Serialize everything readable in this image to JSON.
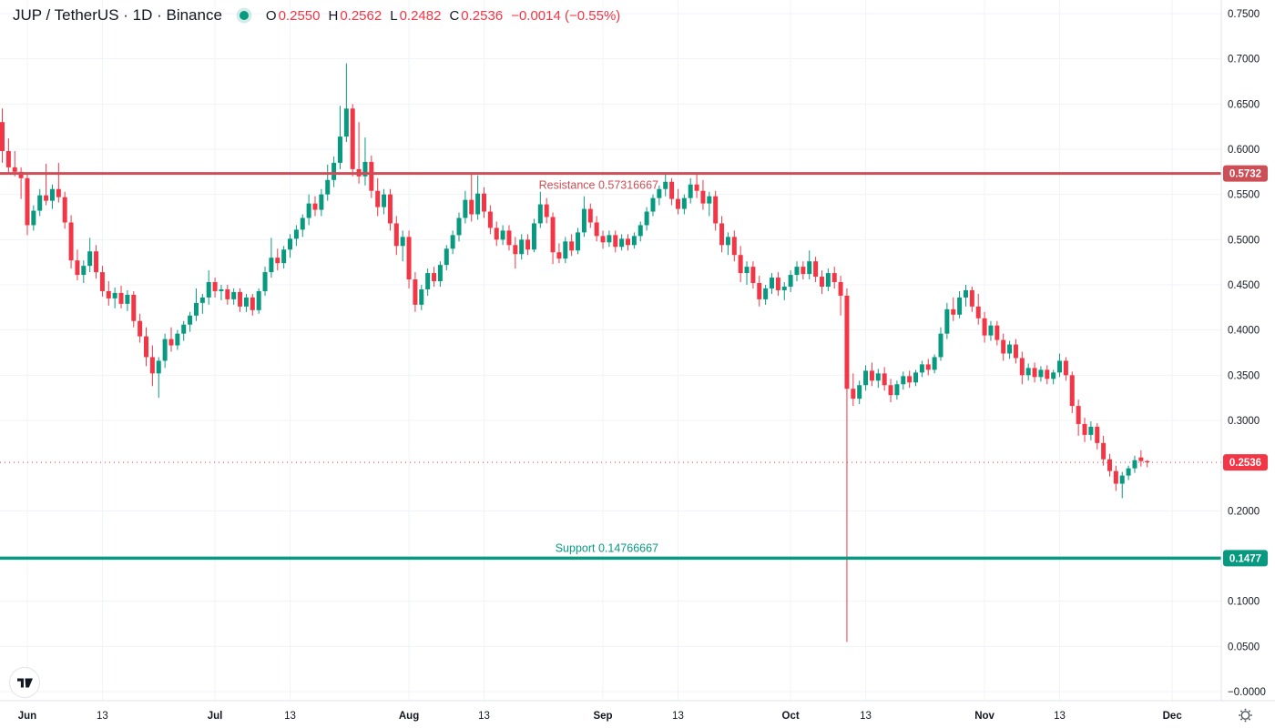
{
  "header": {
    "symbol": "JUP / TetherUS · 1D · Binance",
    "ohlc": {
      "o_label": "O",
      "o": "0.2550",
      "h_label": "H",
      "h": "0.2562",
      "l_label": "L",
      "l": "0.2482",
      "c_label": "C",
      "c": "0.2536",
      "change": "−0.0014 (−0.55%)"
    }
  },
  "icons": {
    "market_status": "market-status-dot",
    "settings": "settings-gear-icon",
    "logo": "tradingview-logo"
  },
  "colors": {
    "up": "#089981",
    "down": "#f23645",
    "resistance": "#cc4e56",
    "support": "#089981",
    "last_price": "#f23645",
    "grid": "#f0f3fa",
    "separator": "#e0e3eb",
    "text": "#131722"
  },
  "chart_data": {
    "type": "candlestick",
    "title": "JUP / TetherUS · 1D · Binance",
    "ylim": [
      0.0,
      0.75
    ],
    "grid": true,
    "price_ticks": {
      "values": [
        0.75,
        0.7,
        0.65,
        0.6,
        0.55,
        0.5,
        0.45,
        0.4,
        0.35,
        0.3,
        0.2,
        0.1,
        0.05,
        0.0
      ],
      "labels": [
        "0.7500",
        "0.7000",
        "0.6500",
        "0.6000",
        "0.5500",
        "0.5000",
        "0.4500",
        "0.4000",
        "0.3500",
        "0.3000",
        "0.2000",
        "0.1000",
        "0.0500",
        "−0.0000"
      ]
    },
    "time_ticks": [
      {
        "label": "Jun",
        "index": 4,
        "major": true
      },
      {
        "label": "13",
        "index": 16,
        "major": false
      },
      {
        "label": "Jul",
        "index": 34,
        "major": true
      },
      {
        "label": "13",
        "index": 46,
        "major": false
      },
      {
        "label": "Aug",
        "index": 65,
        "major": true
      },
      {
        "label": "13",
        "index": 77,
        "major": false
      },
      {
        "label": "Sep",
        "index": 96,
        "major": true
      },
      {
        "label": "13",
        "index": 108,
        "major": false
      },
      {
        "label": "Oct",
        "index": 126,
        "major": true
      },
      {
        "label": "13",
        "index": 138,
        "major": false
      },
      {
        "label": "Nov",
        "index": 157,
        "major": true
      },
      {
        "label": "13",
        "index": 169,
        "major": false
      },
      {
        "label": "Dec",
        "index": 187,
        "major": true
      }
    ],
    "levels": {
      "resistance": {
        "label": "Resistance 0.57316667",
        "value": 0.57316667,
        "badge": "0.5732"
      },
      "support": {
        "label": "Support 0.14766667",
        "value": 0.14766667,
        "badge": "0.1477"
      },
      "last": {
        "value": 0.2536,
        "badge": "0.2536"
      }
    },
    "candles": [
      [
        0.63,
        0.645,
        0.585,
        0.598
      ],
      [
        0.598,
        0.612,
        0.572,
        0.58
      ],
      [
        0.58,
        0.598,
        0.57,
        0.575
      ],
      [
        0.575,
        0.58,
        0.545,
        0.568
      ],
      [
        0.568,
        0.572,
        0.505,
        0.516
      ],
      [
        0.516,
        0.538,
        0.51,
        0.532
      ],
      [
        0.532,
        0.556,
        0.526,
        0.549
      ],
      [
        0.549,
        0.584,
        0.538,
        0.543
      ],
      [
        0.543,
        0.561,
        0.534,
        0.556
      ],
      [
        0.556,
        0.585,
        0.541,
        0.547
      ],
      [
        0.547,
        0.553,
        0.512,
        0.519
      ],
      [
        0.519,
        0.527,
        0.468,
        0.477
      ],
      [
        0.477,
        0.489,
        0.455,
        0.461
      ],
      [
        0.461,
        0.477,
        0.452,
        0.471
      ],
      [
        0.471,
        0.502,
        0.464,
        0.487
      ],
      [
        0.487,
        0.494,
        0.457,
        0.464
      ],
      [
        0.464,
        0.471,
        0.437,
        0.443
      ],
      [
        0.443,
        0.454,
        0.427,
        0.435
      ],
      [
        0.435,
        0.447,
        0.424,
        0.441
      ],
      [
        0.441,
        0.449,
        0.424,
        0.429
      ],
      [
        0.429,
        0.444,
        0.421,
        0.439
      ],
      [
        0.439,
        0.443,
        0.403,
        0.41
      ],
      [
        0.41,
        0.418,
        0.386,
        0.393
      ],
      [
        0.393,
        0.403,
        0.36,
        0.37
      ],
      [
        0.37,
        0.383,
        0.338,
        0.352
      ],
      [
        0.352,
        0.37,
        0.325,
        0.366
      ],
      [
        0.366,
        0.396,
        0.358,
        0.39
      ],
      [
        0.39,
        0.403,
        0.376,
        0.383
      ],
      [
        0.383,
        0.4,
        0.378,
        0.396
      ],
      [
        0.396,
        0.41,
        0.388,
        0.406
      ],
      [
        0.406,
        0.42,
        0.398,
        0.416
      ],
      [
        0.416,
        0.446,
        0.41,
        0.43
      ],
      [
        0.43,
        0.44,
        0.418,
        0.436
      ],
      [
        0.436,
        0.466,
        0.428,
        0.453
      ],
      [
        0.453,
        0.458,
        0.436,
        0.443
      ],
      [
        0.443,
        0.45,
        0.433,
        0.445
      ],
      [
        0.445,
        0.45,
        0.428,
        0.434
      ],
      [
        0.434,
        0.446,
        0.428,
        0.442
      ],
      [
        0.442,
        0.446,
        0.42,
        0.426
      ],
      [
        0.426,
        0.44,
        0.42,
        0.436
      ],
      [
        0.436,
        0.44,
        0.416,
        0.422
      ],
      [
        0.422,
        0.446,
        0.418,
        0.443
      ],
      [
        0.443,
        0.47,
        0.438,
        0.464
      ],
      [
        0.464,
        0.502,
        0.458,
        0.48
      ],
      [
        0.48,
        0.49,
        0.466,
        0.474
      ],
      [
        0.474,
        0.493,
        0.468,
        0.489
      ],
      [
        0.489,
        0.506,
        0.48,
        0.501
      ],
      [
        0.501,
        0.516,
        0.493,
        0.511
      ],
      [
        0.511,
        0.528,
        0.503,
        0.524
      ],
      [
        0.524,
        0.55,
        0.516,
        0.54
      ],
      [
        0.54,
        0.548,
        0.526,
        0.533
      ],
      [
        0.533,
        0.556,
        0.526,
        0.55
      ],
      [
        0.55,
        0.583,
        0.543,
        0.566
      ],
      [
        0.566,
        0.592,
        0.558,
        0.585
      ],
      [
        0.585,
        0.648,
        0.578,
        0.614
      ],
      [
        0.614,
        0.695,
        0.608,
        0.645
      ],
      [
        0.645,
        0.65,
        0.57,
        0.578
      ],
      [
        0.578,
        0.63,
        0.562,
        0.57
      ],
      [
        0.57,
        0.613,
        0.56,
        0.586
      ],
      [
        0.586,
        0.593,
        0.546,
        0.554
      ],
      [
        0.554,
        0.568,
        0.526,
        0.536
      ],
      [
        0.536,
        0.556,
        0.528,
        0.55
      ],
      [
        0.55,
        0.556,
        0.51,
        0.518
      ],
      [
        0.518,
        0.526,
        0.483,
        0.493
      ],
      [
        0.493,
        0.51,
        0.476,
        0.503
      ],
      [
        0.503,
        0.51,
        0.446,
        0.456
      ],
      [
        0.456,
        0.464,
        0.42,
        0.428
      ],
      [
        0.428,
        0.45,
        0.422,
        0.445
      ],
      [
        0.445,
        0.468,
        0.438,
        0.463
      ],
      [
        0.463,
        0.47,
        0.448,
        0.454
      ],
      [
        0.454,
        0.476,
        0.448,
        0.472
      ],
      [
        0.472,
        0.494,
        0.466,
        0.49
      ],
      [
        0.49,
        0.51,
        0.484,
        0.505
      ],
      [
        0.505,
        0.53,
        0.498,
        0.524
      ],
      [
        0.524,
        0.554,
        0.518,
        0.544
      ],
      [
        0.544,
        0.573,
        0.52,
        0.528
      ],
      [
        0.528,
        0.571,
        0.522,
        0.551
      ],
      [
        0.551,
        0.558,
        0.524,
        0.531
      ],
      [
        0.531,
        0.538,
        0.506,
        0.513
      ],
      [
        0.513,
        0.52,
        0.493,
        0.5
      ],
      [
        0.5,
        0.516,
        0.494,
        0.51
      ],
      [
        0.51,
        0.516,
        0.488,
        0.494
      ],
      [
        0.494,
        0.503,
        0.468,
        0.484
      ],
      [
        0.484,
        0.506,
        0.478,
        0.5
      ],
      [
        0.5,
        0.506,
        0.483,
        0.489
      ],
      [
        0.489,
        0.523,
        0.486,
        0.518
      ],
      [
        0.518,
        0.553,
        0.513,
        0.539
      ],
      [
        0.539,
        0.546,
        0.518,
        0.525
      ],
      [
        0.525,
        0.53,
        0.473,
        0.486
      ],
      [
        0.486,
        0.496,
        0.474,
        0.479
      ],
      [
        0.479,
        0.503,
        0.474,
        0.498
      ],
      [
        0.498,
        0.506,
        0.482,
        0.488
      ],
      [
        0.488,
        0.513,
        0.484,
        0.508
      ],
      [
        0.508,
        0.548,
        0.503,
        0.534
      ],
      [
        0.534,
        0.54,
        0.513,
        0.519
      ],
      [
        0.519,
        0.526,
        0.498,
        0.504
      ],
      [
        0.504,
        0.51,
        0.49,
        0.497
      ],
      [
        0.497,
        0.51,
        0.492,
        0.505
      ],
      [
        0.505,
        0.51,
        0.486,
        0.492
      ],
      [
        0.492,
        0.506,
        0.488,
        0.501
      ],
      [
        0.501,
        0.506,
        0.488,
        0.494
      ],
      [
        0.494,
        0.508,
        0.49,
        0.504
      ],
      [
        0.504,
        0.52,
        0.498,
        0.516
      ],
      [
        0.516,
        0.536,
        0.51,
        0.531
      ],
      [
        0.531,
        0.55,
        0.526,
        0.546
      ],
      [
        0.546,
        0.56,
        0.538,
        0.556
      ],
      [
        0.556,
        0.5731,
        0.548,
        0.564
      ],
      [
        0.564,
        0.568,
        0.538,
        0.545
      ],
      [
        0.545,
        0.556,
        0.528,
        0.534
      ],
      [
        0.534,
        0.55,
        0.528,
        0.546
      ],
      [
        0.546,
        0.568,
        0.54,
        0.561
      ],
      [
        0.561,
        0.5732,
        0.546,
        0.554
      ],
      [
        0.554,
        0.566,
        0.533,
        0.54
      ],
      [
        0.54,
        0.553,
        0.526,
        0.548
      ],
      [
        0.548,
        0.554,
        0.51,
        0.518
      ],
      [
        0.518,
        0.526,
        0.486,
        0.494
      ],
      [
        0.494,
        0.508,
        0.483,
        0.503
      ],
      [
        0.503,
        0.51,
        0.476,
        0.483
      ],
      [
        0.483,
        0.493,
        0.453,
        0.463
      ],
      [
        0.463,
        0.476,
        0.45,
        0.47
      ],
      [
        0.47,
        0.476,
        0.446,
        0.452
      ],
      [
        0.452,
        0.46,
        0.426,
        0.434
      ],
      [
        0.434,
        0.45,
        0.428,
        0.446
      ],
      [
        0.446,
        0.463,
        0.44,
        0.458
      ],
      [
        0.458,
        0.464,
        0.438,
        0.444
      ],
      [
        0.444,
        0.453,
        0.433,
        0.448
      ],
      [
        0.448,
        0.466,
        0.442,
        0.461
      ],
      [
        0.461,
        0.476,
        0.454,
        0.47
      ],
      [
        0.47,
        0.476,
        0.456,
        0.462
      ],
      [
        0.462,
        0.488,
        0.456,
        0.476
      ],
      [
        0.476,
        0.481,
        0.453,
        0.459
      ],
      [
        0.459,
        0.466,
        0.44,
        0.448
      ],
      [
        0.448,
        0.468,
        0.443,
        0.463
      ],
      [
        0.463,
        0.47,
        0.446,
        0.453
      ],
      [
        0.453,
        0.46,
        0.416,
        0.438
      ],
      [
        0.438,
        0.446,
        0.055,
        0.335
      ],
      [
        0.335,
        0.352,
        0.316,
        0.324
      ],
      [
        0.324,
        0.344,
        0.318,
        0.339
      ],
      [
        0.339,
        0.361,
        0.333,
        0.355
      ],
      [
        0.355,
        0.364,
        0.338,
        0.344
      ],
      [
        0.344,
        0.357,
        0.336,
        0.352
      ],
      [
        0.352,
        0.359,
        0.333,
        0.339
      ],
      [
        0.339,
        0.346,
        0.32,
        0.328
      ],
      [
        0.328,
        0.344,
        0.323,
        0.34
      ],
      [
        0.34,
        0.354,
        0.334,
        0.349
      ],
      [
        0.349,
        0.355,
        0.336,
        0.342
      ],
      [
        0.342,
        0.356,
        0.338,
        0.353
      ],
      [
        0.353,
        0.366,
        0.348,
        0.362
      ],
      [
        0.362,
        0.368,
        0.35,
        0.356
      ],
      [
        0.356,
        0.373,
        0.352,
        0.37
      ],
      [
        0.37,
        0.403,
        0.366,
        0.396
      ],
      [
        0.396,
        0.43,
        0.39,
        0.423
      ],
      [
        0.423,
        0.436,
        0.41,
        0.417
      ],
      [
        0.417,
        0.443,
        0.413,
        0.436
      ],
      [
        0.436,
        0.45,
        0.426,
        0.444
      ],
      [
        0.444,
        0.448,
        0.42,
        0.426
      ],
      [
        0.426,
        0.44,
        0.406,
        0.413
      ],
      [
        0.413,
        0.42,
        0.386,
        0.394
      ],
      [
        0.394,
        0.41,
        0.388,
        0.405
      ],
      [
        0.405,
        0.41,
        0.383,
        0.389
      ],
      [
        0.389,
        0.396,
        0.366,
        0.374
      ],
      [
        0.374,
        0.388,
        0.368,
        0.384
      ],
      [
        0.384,
        0.39,
        0.363,
        0.369
      ],
      [
        0.369,
        0.376,
        0.34,
        0.35
      ],
      [
        0.35,
        0.363,
        0.344,
        0.358
      ],
      [
        0.358,
        0.364,
        0.342,
        0.348
      ],
      [
        0.348,
        0.36,
        0.343,
        0.356
      ],
      [
        0.356,
        0.361,
        0.34,
        0.346
      ],
      [
        0.346,
        0.356,
        0.34,
        0.353
      ],
      [
        0.353,
        0.374,
        0.348,
        0.366
      ],
      [
        0.366,
        0.37,
        0.344,
        0.35
      ],
      [
        0.35,
        0.354,
        0.308,
        0.316
      ],
      [
        0.316,
        0.323,
        0.283,
        0.296
      ],
      [
        0.296,
        0.303,
        0.276,
        0.284
      ],
      [
        0.284,
        0.299,
        0.278,
        0.293
      ],
      [
        0.293,
        0.297,
        0.268,
        0.275
      ],
      [
        0.275,
        0.283,
        0.25,
        0.257
      ],
      [
        0.257,
        0.263,
        0.238,
        0.244
      ],
      [
        0.244,
        0.25,
        0.222,
        0.23
      ],
      [
        0.23,
        0.243,
        0.214,
        0.239
      ],
      [
        0.239,
        0.25,
        0.234,
        0.247
      ],
      [
        0.247,
        0.261,
        0.242,
        0.256
      ],
      [
        0.259,
        0.267,
        0.249,
        0.255
      ],
      [
        0.255,
        0.2562,
        0.2482,
        0.2536
      ]
    ]
  }
}
